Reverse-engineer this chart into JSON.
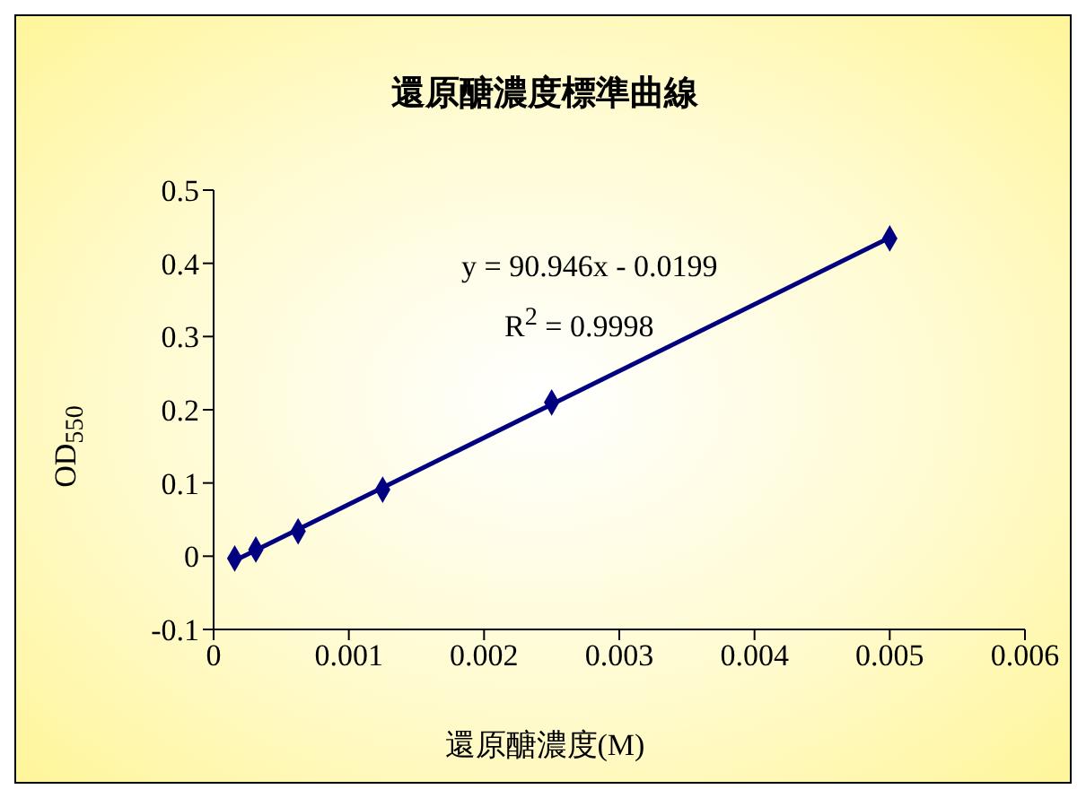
{
  "chart_data": {
    "type": "scatter",
    "title": "還原醣濃度標準曲線",
    "xlabel": "還原醣濃度(M)",
    "ylabel": "OD$_{550}$",
    "annotations": [
      "y = 90.946x - 0.0199",
      "R$^{2}$ = 0.9998"
    ],
    "series": [
      {
        "color": "#000080",
        "x": [
          0.000156,
          0.0003125,
          0.000625,
          0.00125,
          0.0025,
          0.005
        ],
        "values": [
          -0.003,
          0.009,
          0.034,
          0.091,
          0.21,
          0.434
        ],
        "marker": "diamond"
      },
      {
        "type": "line",
        "color": "#000080",
        "x": [
          0.000156,
          0.005
        ],
        "values": [
          -0.006,
          0.435
        ],
        "marker": "none",
        "line_style": "solid"
      }
    ],
    "xlim": [
      0,
      0.006
    ],
    "xticks": [
      0,
      0.001,
      0.002,
      0.003,
      0.004,
      0.005,
      0.006
    ],
    "ylim": [
      -0.1,
      0.5
    ],
    "yticks": [
      -0.1,
      0,
      0.1,
      0.2,
      0.3,
      0.4,
      0.5
    ],
    "grid": false,
    "legend": false
  }
}
